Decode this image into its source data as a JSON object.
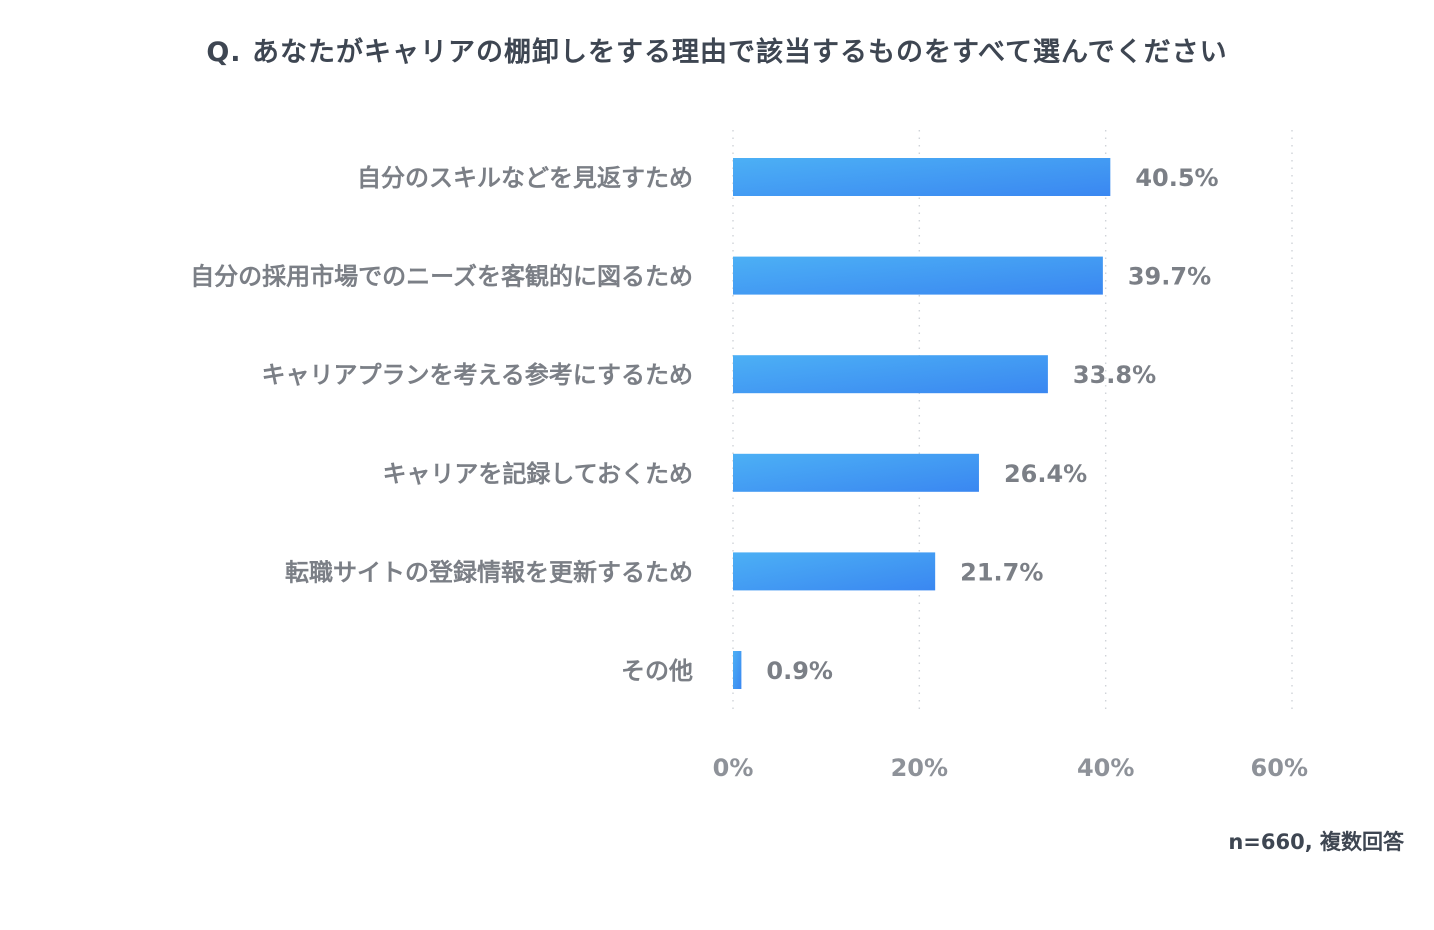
{
  "title": "Q. あなたがキャリアの棚卸しをする理由で該当するものをすべて選んでください",
  "footnote": "n=660, 複数回答",
  "colors": {
    "bar_start": "#4cb0f5",
    "bar_end": "#3a87f1",
    "grid": "#cfd3d8",
    "label": "#7b7f86",
    "title": "#3e4652"
  },
  "chart_data": {
    "type": "bar",
    "orientation": "horizontal",
    "categories": [
      "自分のスキルなどを見返すため",
      "自分の採用市場でのニーズを客観的に図るため",
      "キャリアプランを考える参考にするため",
      "キャリアを記録しておくため",
      "転職サイトの登録情報を更新するため",
      "その他"
    ],
    "values": [
      40.5,
      39.7,
      33.8,
      26.4,
      21.7,
      0.9
    ],
    "value_labels": [
      "40.5%",
      "39.7%",
      "33.8%",
      "26.4%",
      "21.7%",
      "0.9%"
    ],
    "xlim": [
      0,
      60
    ],
    "xticks": [
      0,
      20,
      40,
      60
    ],
    "xtick_labels": [
      "0%",
      "20%",
      "40%",
      "60%"
    ],
    "grid": true,
    "title": "Q. あなたがキャリアの棚卸しをする理由で該当するものをすべて選んでください",
    "xlabel": "",
    "ylabel": ""
  }
}
